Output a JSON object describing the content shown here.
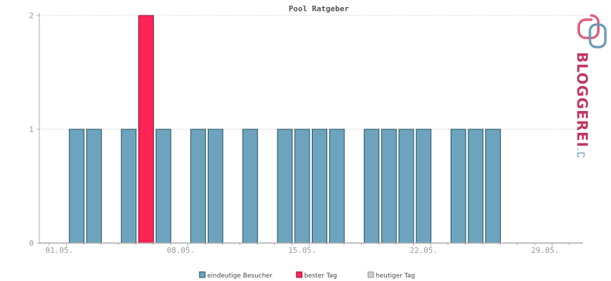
{
  "chart_data": {
    "type": "bar",
    "title": "Pool Ratgeber",
    "x_tick_labels": [
      "01.05.",
      "08.05.",
      "15.05.",
      "22.05.",
      "29.05."
    ],
    "y_ticks": [
      0,
      1,
      2
    ],
    "ylim": [
      0,
      2
    ],
    "grid": true,
    "series": [
      {
        "name": "eindeutige Besucher",
        "color": "#6ea3bd",
        "x": [
          2,
          3,
          5,
          7,
          9,
          10,
          12,
          14,
          15,
          16,
          17,
          19,
          20,
          21,
          22,
          24,
          25,
          26
        ],
        "values": [
          1,
          1,
          1,
          1,
          1,
          1,
          1,
          1,
          1,
          1,
          1,
          1,
          1,
          1,
          1,
          1,
          1,
          1
        ]
      },
      {
        "name": "bester Tag",
        "color": "#ff2255",
        "x": [
          6
        ],
        "values": [
          2
        ]
      },
      {
        "name": "heutiger Tag",
        "color": "#cccccc",
        "x": [],
        "values": []
      }
    ],
    "legend_position": "bottom"
  },
  "branding": {
    "text_main": "BLOGGEREI",
    "text_suffix": ".DE",
    "color_main": "#c2375f",
    "color_suffix": "#6e9bb5"
  }
}
